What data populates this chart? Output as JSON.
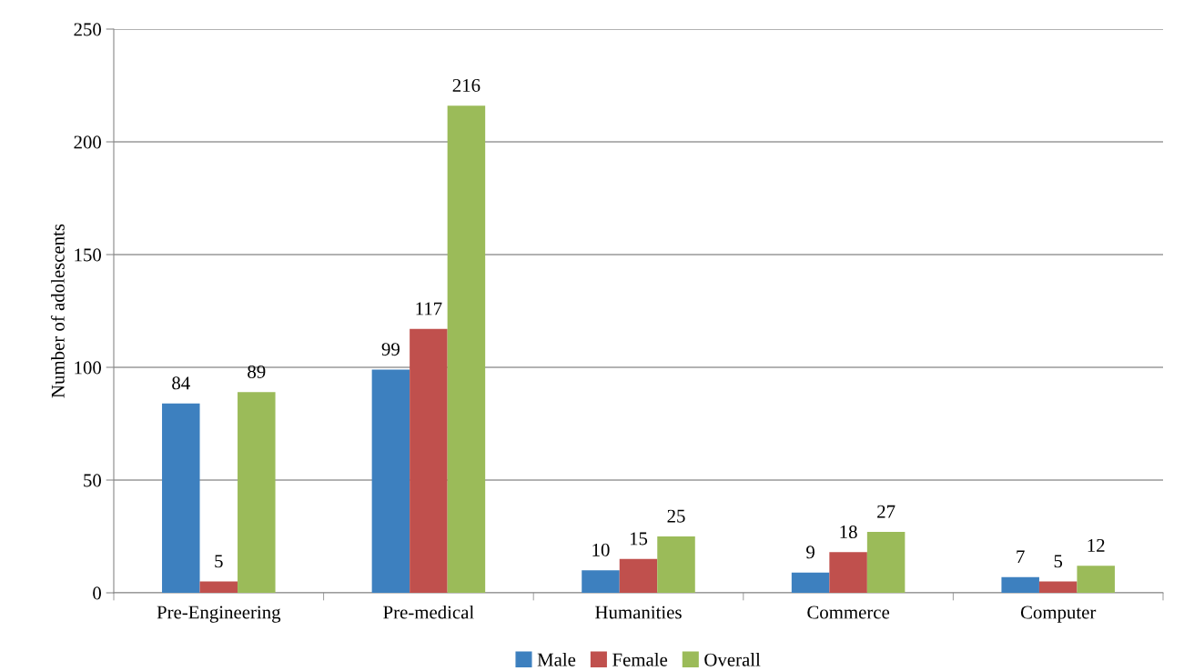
{
  "chart_data": {
    "type": "bar",
    "ylabel": "Number of adolescents",
    "categories": [
      "Pre-Engineering",
      "Pre-medical",
      "Humanities",
      "Commerce",
      "Computer"
    ],
    "series": [
      {
        "name": "Male",
        "color": "#3d80bf",
        "values": [
          84,
          99,
          10,
          9,
          7
        ]
      },
      {
        "name": "Female",
        "color": "#c0504d",
        "values": [
          5,
          117,
          15,
          18,
          5
        ]
      },
      {
        "name": "Overall",
        "color": "#9bbb59",
        "values": [
          89,
          216,
          25,
          27,
          12
        ]
      }
    ],
    "ylim": [
      0,
      250
    ],
    "yticks": [
      0,
      50,
      100,
      150,
      200,
      250
    ],
    "grid": "y",
    "legend": "bottom",
    "data_labels": true
  }
}
